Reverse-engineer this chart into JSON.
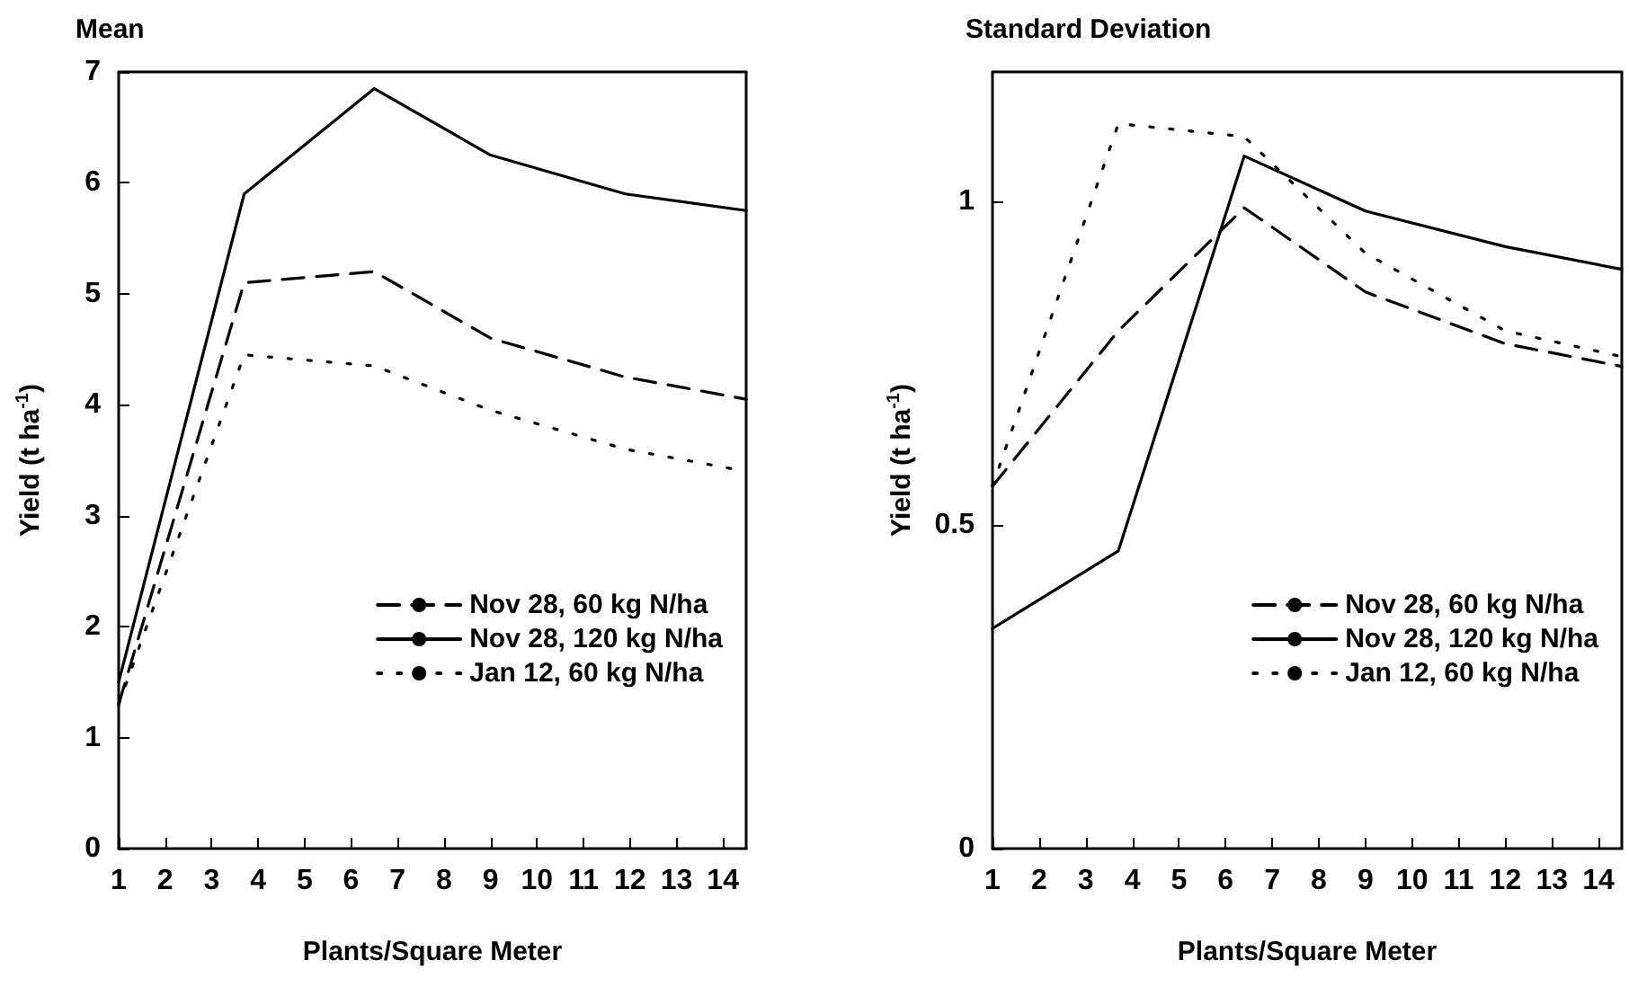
{
  "chart_data": [
    {
      "type": "line",
      "title": "Mean",
      "xlabel": "Plants/Square Meter",
      "ylabel": "Yield (t ha$^{-1}$)",
      "x": [
        1,
        3.7,
        6.5,
        9,
        11.9,
        14.5
      ],
      "xlim": [
        1,
        14.5
      ],
      "xticks": [
        1,
        2,
        3,
        4,
        5,
        6,
        7,
        8,
        9,
        10,
        11,
        12,
        13,
        14
      ],
      "ylim": [
        0,
        7
      ],
      "yticks": [
        0,
        1,
        2,
        3,
        4,
        5,
        6,
        7
      ],
      "grid": false,
      "legend": "bottom right",
      "marker": "none",
      "series": [
        {
          "name": "Nov 28, 60 kg N/ha",
          "color": "#000000",
          "line_style": "dashed",
          "values": [
            1.3,
            5.1,
            5.2,
            4.6,
            4.25,
            4.05
          ]
        },
        {
          "name": "Nov 28, 120 kg N/ha",
          "color": "#000000",
          "line_style": "solid",
          "values": [
            1.5,
            5.9,
            6.85,
            6.25,
            5.9,
            5.75
          ]
        },
        {
          "name": "Jan 12, 60 kg N/ha",
          "color": "#000000",
          "line_style": "dotted",
          "values": [
            1.3,
            4.45,
            4.35,
            3.95,
            3.6,
            3.4
          ]
        }
      ]
    },
    {
      "type": "line",
      "title": "Standard Deviation",
      "xlabel": "Plants/Square Meter",
      "ylabel": "Yield (t ha$^{-1}$)",
      "x": [
        1,
        3.7,
        6.4,
        9,
        12,
        14.5
      ],
      "xlim": [
        1,
        14.5
      ],
      "xticks": [
        1,
        2,
        3,
        4,
        5,
        6,
        7,
        8,
        9,
        10,
        11,
        12,
        13,
        14
      ],
      "ylim": [
        0,
        1.2
      ],
      "yticks": [
        0,
        0.5,
        1
      ],
      "grid": false,
      "legend": "bottom right",
      "marker": "none",
      "series": [
        {
          "name": "Nov 28, 60 kg N/ha",
          "color": "#000000",
          "line_style": "dashed",
          "values": [
            0.56,
            0.8,
            0.99,
            0.86,
            0.78,
            0.745
          ]
        },
        {
          "name": "Nov 28, 120 kg N/ha",
          "color": "#000000",
          "line_style": "solid",
          "values": [
            0.34,
            0.46,
            1.07,
            0.985,
            0.93,
            0.895
          ]
        },
        {
          "name": "Jan 12, 60 kg N/ha",
          "color": "#000000",
          "line_style": "dotted",
          "values": [
            0.56,
            1.12,
            1.1,
            0.92,
            0.8,
            0.76
          ]
        }
      ]
    }
  ]
}
